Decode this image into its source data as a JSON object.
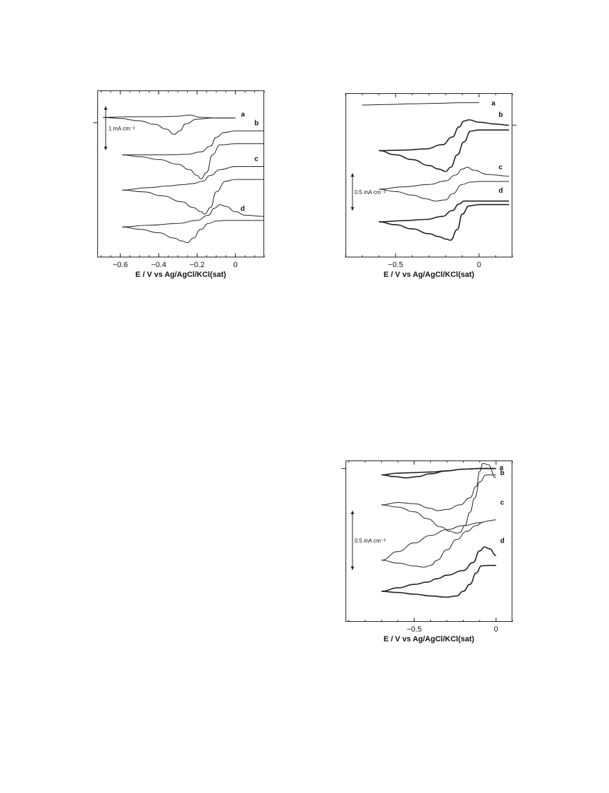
{
  "chart_data": [
    {
      "type": "line",
      "xlabel": "E / V vs  Ag/AgCl/KCl(sat)",
      "xlim": [
        -0.72,
        0.15
      ],
      "x_ticks": [
        -0.6,
        -0.4,
        -0.2,
        0
      ],
      "x_tick_labels": [
        "−0.6",
        "−0.4",
        "−0.2",
        "0"
      ],
      "scale_bar": "1 mA cm⁻²",
      "series": [
        {
          "name": "a",
          "type": "cyclic",
          "upper_x": [
            -0.69,
            -0.55,
            -0.4,
            -0.3,
            -0.24,
            -0.18,
            -0.1,
            0.0
          ],
          "upper_y": [
            0.09,
            0.1,
            0.1,
            0.11,
            0.13,
            0.09,
            0.08,
            0.08
          ],
          "lower_x": [
            -0.69,
            -0.6,
            -0.5,
            -0.42,
            -0.36,
            -0.32,
            -0.29,
            -0.26,
            -0.2,
            -0.12,
            0.0
          ],
          "lower_y": [
            0.09,
            0.07,
            0.03,
            -0.03,
            -0.11,
            -0.2,
            -0.14,
            -0.02,
            0.06,
            0.08,
            0.08
          ]
        },
        {
          "name": "b",
          "type": "cyclic",
          "upper_x": [
            -0.59,
            -0.45,
            -0.35,
            -0.25,
            -0.18,
            -0.13,
            -0.1,
            -0.06,
            0.0,
            0.15
          ],
          "upper_y": [
            -0.55,
            -0.55,
            -0.55,
            -0.54,
            -0.5,
            -0.4,
            -0.25,
            -0.17,
            -0.14,
            -0.14
          ],
          "lower_x": [
            -0.59,
            -0.5,
            -0.4,
            -0.3,
            -0.24,
            -0.2,
            -0.18,
            -0.15,
            -0.12,
            -0.08,
            0.0,
            0.15
          ],
          "lower_y": [
            -0.55,
            -0.58,
            -0.63,
            -0.71,
            -0.8,
            -0.9,
            -0.96,
            -0.85,
            -0.55,
            -0.38,
            -0.36,
            -0.36
          ]
        },
        {
          "name": "c",
          "type": "cyclic",
          "upper_x": [
            -0.59,
            -0.45,
            -0.35,
            -0.28,
            -0.22,
            -0.17,
            -0.13,
            -0.08,
            0.0,
            0.15
          ],
          "upper_y": [
            -1.15,
            -1.11,
            -1.08,
            -1.06,
            -1.04,
            -1.0,
            -0.9,
            -0.8,
            -0.75,
            -0.75
          ],
          "lower_x": [
            -0.59,
            -0.48,
            -0.38,
            -0.28,
            -0.22,
            -0.18,
            -0.16,
            -0.13,
            -0.1,
            -0.05,
            0.0,
            0.15
          ],
          "lower_y": [
            -1.15,
            -1.18,
            -1.25,
            -1.35,
            -1.45,
            -1.52,
            -1.56,
            -1.45,
            -1.18,
            -1.0,
            -0.97,
            -0.97
          ]
        },
        {
          "name": "d",
          "type": "cyclic",
          "upper_x": [
            -0.59,
            -0.45,
            -0.3,
            -0.2,
            -0.14,
            -0.11,
            -0.08,
            -0.05,
            0.0,
            0.05,
            0.15
          ],
          "upper_y": [
            -1.78,
            -1.75,
            -1.72,
            -1.67,
            -1.58,
            -1.46,
            -1.4,
            -1.43,
            -1.52,
            -1.58,
            -1.6
          ],
          "lower_x": [
            -0.59,
            -0.5,
            -0.4,
            -0.32,
            -0.28,
            -0.25,
            -0.22,
            -0.18,
            -0.14,
            -0.1,
            -0.05,
            0.0,
            0.15
          ],
          "lower_y": [
            -1.78,
            -1.82,
            -1.88,
            -1.97,
            -2.02,
            -2.05,
            -1.97,
            -1.82,
            -1.72,
            -1.68,
            -1.67,
            -1.67,
            -1.67
          ]
        }
      ]
    },
    {
      "type": "line",
      "xlabel": "E / V vs  Ag/AgCl/KCl(sat)",
      "xlim": [
        -0.8,
        0.2
      ],
      "x_ticks": [
        -0.5,
        0
      ],
      "x_tick_labels": [
        "−0.5",
        "0"
      ],
      "scale_bar": "0.5 mA cm⁻²",
      "series": [
        {
          "name": "a",
          "type": "single",
          "x": [
            -0.7,
            -0.55,
            -0.4,
            -0.25,
            -0.1,
            0.0
          ],
          "y": [
            0.72,
            0.73,
            0.74,
            0.75,
            0.76,
            0.76
          ]
        },
        {
          "name": "b",
          "type": "cyclic",
          "noisy": true,
          "upper_x": [
            -0.6,
            -0.45,
            -0.32,
            -0.22,
            -0.16,
            -0.12,
            -0.09,
            -0.06,
            0.0,
            0.1,
            0.18
          ],
          "upper_y": [
            -0.05,
            -0.04,
            -0.02,
            0.05,
            0.18,
            0.35,
            0.45,
            0.47,
            0.43,
            0.4,
            0.38
          ],
          "lower_x": [
            -0.6,
            -0.5,
            -0.4,
            -0.3,
            -0.24,
            -0.2,
            -0.17,
            -0.13,
            -0.09,
            -0.05,
            0.0,
            0.18
          ],
          "lower_y": [
            -0.05,
            -0.12,
            -0.2,
            -0.3,
            -0.36,
            -0.4,
            -0.33,
            -0.12,
            0.1,
            0.28,
            0.3,
            0.3
          ]
        },
        {
          "name": "c",
          "type": "cyclic",
          "upper_x": [
            -0.6,
            -0.45,
            -0.3,
            -0.2,
            -0.14,
            -0.1,
            -0.07,
            -0.03,
            0.05,
            0.18
          ],
          "upper_y": [
            -0.7,
            -0.66,
            -0.62,
            -0.56,
            -0.46,
            -0.36,
            -0.33,
            -0.38,
            -0.45,
            -0.48
          ],
          "lower_x": [
            -0.6,
            -0.5,
            -0.4,
            -0.32,
            -0.26,
            -0.2,
            -0.16,
            -0.1,
            -0.05,
            0.0,
            0.18
          ],
          "lower_y": [
            -0.7,
            -0.74,
            -0.8,
            -0.86,
            -0.9,
            -0.88,
            -0.78,
            -0.62,
            -0.58,
            -0.57,
            -0.57
          ]
        },
        {
          "name": "d",
          "type": "cyclic",
          "noisy": true,
          "upper_x": [
            -0.6,
            -0.45,
            -0.32,
            -0.22,
            -0.16,
            -0.12,
            -0.09,
            -0.05,
            0.0,
            0.18
          ],
          "upper_y": [
            -1.25,
            -1.23,
            -1.21,
            -1.16,
            -1.06,
            -0.95,
            -0.9,
            -0.9,
            -0.9,
            -0.9
          ],
          "lower_x": [
            -0.6,
            -0.5,
            -0.4,
            -0.3,
            -0.24,
            -0.2,
            -0.17,
            -0.13,
            -0.1,
            -0.06,
            0.0,
            0.18
          ],
          "lower_y": [
            -1.25,
            -1.3,
            -1.37,
            -1.45,
            -1.5,
            -1.54,
            -1.56,
            -1.38,
            -1.12,
            -0.98,
            -0.96,
            -0.96
          ]
        }
      ]
    },
    {
      "type": "line",
      "xlabel": "E / V vs  Ag/AgCl/KCl(sat)",
      "xlim": [
        -0.92,
        0.1
      ],
      "x_ticks": [
        -0.5,
        0
      ],
      "x_tick_labels": [
        "−0.5",
        "0"
      ],
      "scale_bar": "0.5 mA cm⁻²",
      "series": [
        {
          "name": "a",
          "type": "cyclic",
          "noisy": true,
          "upper_x": [
            -0.7,
            -0.6,
            -0.5,
            -0.4,
            -0.3,
            -0.2,
            -0.1,
            0.0
          ],
          "upper_y": [
            0.0,
            0.03,
            0.04,
            0.05,
            0.07,
            0.1,
            0.11,
            0.11
          ],
          "lower_x": [
            -0.7,
            -0.62,
            -0.55,
            -0.48,
            -0.4,
            -0.3,
            -0.2,
            -0.1,
            0.0
          ],
          "lower_y": [
            0.0,
            -0.03,
            -0.05,
            -0.03,
            0.02,
            0.07,
            0.1,
            0.11,
            0.11
          ]
        },
        {
          "name": "b",
          "type": "cyclic",
          "upper_x": [
            -0.7,
            -0.6,
            -0.5,
            -0.4,
            -0.36,
            -0.3,
            -0.22,
            -0.16,
            -0.12,
            -0.1,
            -0.08,
            -0.05,
            0.0
          ],
          "upper_y": [
            -0.52,
            -0.48,
            -0.5,
            -0.58,
            -0.62,
            -0.6,
            -0.52,
            -0.4,
            -0.2,
            0.06,
            0.2,
            0.18,
            -0.05
          ],
          "lower_x": [
            -0.7,
            -0.6,
            -0.5,
            -0.42,
            -0.34,
            -0.28,
            -0.24,
            -0.22,
            -0.19,
            -0.16,
            -0.13,
            -0.1,
            -0.06,
            0.0
          ],
          "lower_y": [
            -0.52,
            -0.56,
            -0.64,
            -0.76,
            -0.9,
            -0.98,
            -1.01,
            -1.0,
            -0.88,
            -0.65,
            -0.4,
            -0.12,
            0.0,
            0.0
          ]
        },
        {
          "name": "c",
          "type": "cyclic",
          "upper_x": [
            -0.7,
            -0.6,
            -0.5,
            -0.4,
            -0.3,
            -0.2,
            -0.1,
            -0.05,
            0.0
          ],
          "upper_y": [
            -1.48,
            -1.33,
            -1.18,
            -1.05,
            -0.95,
            -0.88,
            -0.83,
            -0.8,
            -0.78
          ],
          "lower_x": [
            -0.7,
            -0.6,
            -0.5,
            -0.44,
            -0.4,
            -0.36,
            -0.3,
            -0.24,
            -0.18,
            -0.12,
            -0.08
          ],
          "lower_y": [
            -1.48,
            -1.53,
            -1.58,
            -1.6,
            -1.57,
            -1.48,
            -1.3,
            -1.12,
            -0.98,
            -0.88,
            -0.82
          ]
        },
        {
          "name": "d",
          "type": "cyclic",
          "noisy": true,
          "upper_x": [
            -0.7,
            -0.6,
            -0.5,
            -0.42,
            -0.36,
            -0.3,
            -0.2,
            -0.14,
            -0.1,
            -0.07,
            -0.04,
            0.0
          ],
          "upper_y": [
            -2.02,
            -1.96,
            -1.9,
            -1.86,
            -1.8,
            -1.74,
            -1.66,
            -1.52,
            -1.32,
            -1.25,
            -1.28,
            -1.4
          ],
          "lower_x": [
            -0.7,
            -0.6,
            -0.5,
            -0.4,
            -0.3,
            -0.24,
            -0.2,
            -0.16,
            -0.12,
            -0.09,
            -0.05,
            0.0
          ],
          "lower_y": [
            -2.02,
            -2.04,
            -2.07,
            -2.1,
            -2.12,
            -2.1,
            -2.02,
            -1.9,
            -1.7,
            -1.58,
            -1.57,
            -1.57
          ]
        }
      ]
    }
  ]
}
